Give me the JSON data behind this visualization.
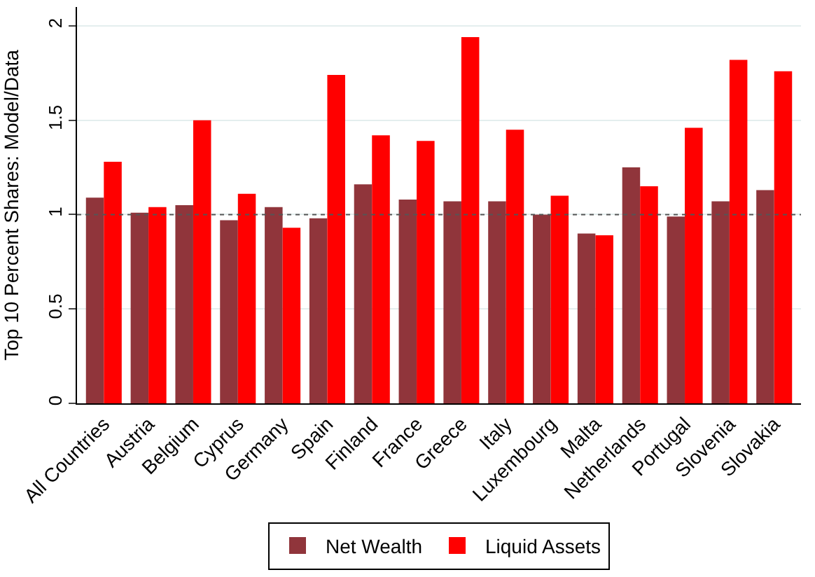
{
  "chart_data": {
    "type": "bar",
    "ylabel": "Top 10 Percent Shares: Model/Data",
    "categories": [
      "All Countries",
      "Austria",
      "Belgium",
      "Cyprus",
      "Germany",
      "Spain",
      "Finland",
      "France",
      "Greece",
      "Italy",
      "Luxembourg",
      "Malta",
      "Netherlands",
      "Portugal",
      "Slovenia",
      "Slovakia"
    ],
    "series": [
      {
        "name": "Net Wealth",
        "color": "#90353b",
        "values": [
          1.09,
          1.01,
          1.05,
          0.97,
          1.04,
          0.98,
          1.16,
          1.08,
          1.07,
          1.07,
          1.0,
          0.9,
          1.25,
          0.99,
          1.07,
          1.13
        ]
      },
      {
        "name": "Liquid Assets",
        "color": "#ff0000",
        "values": [
          1.28,
          1.04,
          1.5,
          1.11,
          0.93,
          1.74,
          1.42,
          1.39,
          1.94,
          1.45,
          1.1,
          0.89,
          1.15,
          1.46,
          1.82,
          1.76
        ]
      }
    ],
    "ylim": [
      0,
      2.1
    ],
    "yticks": [
      0,
      0.5,
      1,
      1.5,
      2
    ],
    "grid": "y",
    "legend": "bottom",
    "ref_lines": [
      {
        "axis": "y",
        "value": 1,
        "line_style": "dotted",
        "color": "#555555"
      }
    ]
  }
}
